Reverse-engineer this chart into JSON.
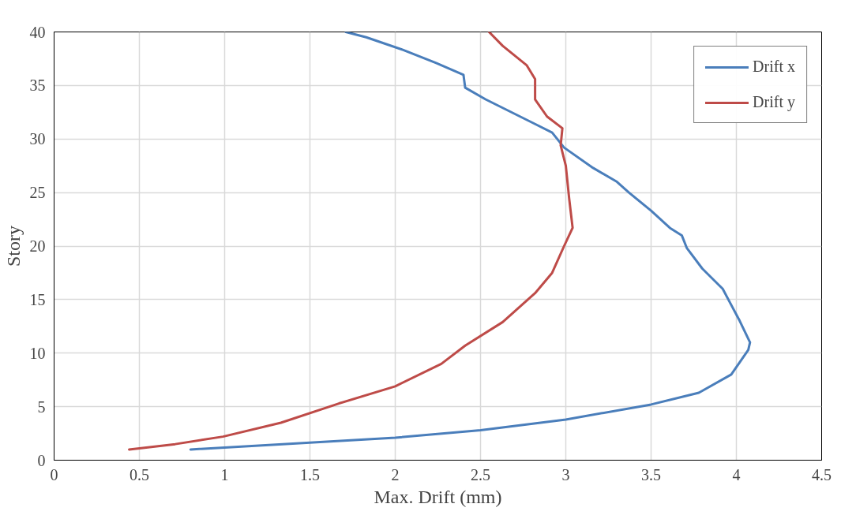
{
  "chart_data": {
    "type": "line",
    "xlabel": "Max. Drift (mm)",
    "ylabel": "Story",
    "xlim": [
      0,
      4.5
    ],
    "ylim": [
      0,
      40
    ],
    "xticks": [
      0,
      0.5,
      1,
      1.5,
      2,
      2.5,
      3,
      3.5,
      4,
      4.5
    ],
    "yticks": [
      0,
      5,
      10,
      15,
      20,
      25,
      30,
      35,
      40
    ],
    "grid": true,
    "legend": "top right",
    "marker": "none",
    "line_style": "solid",
    "series": [
      {
        "name": "Drift x",
        "color": "#4a7ebb",
        "x": [
          0.8,
          2.0,
          2.5,
          3.0,
          3.5,
          3.78,
          3.97,
          4.07,
          4.08,
          4.02,
          3.96,
          3.92,
          3.8,
          3.71,
          3.68,
          3.61,
          3.5,
          3.37,
          3.3,
          3.16,
          2.99,
          2.92,
          2.82,
          2.53,
          2.41,
          2.4,
          2.24,
          2.05,
          1.83,
          1.71
        ],
        "values": [
          1,
          2.1,
          2.8,
          3.8,
          5.2,
          6.3,
          8,
          10.3,
          11,
          13,
          14.8,
          16,
          17.9,
          19.8,
          21,
          21.7,
          23.3,
          25,
          26,
          27.3,
          29.2,
          30.6,
          31.4,
          33.7,
          34.8,
          36,
          37.1,
          38.3,
          39.5,
          40
        ]
      },
      {
        "name": "Drift y",
        "color": "#be4b48",
        "x": [
          0.44,
          0.71,
          0.99,
          1.33,
          1.67,
          2.0,
          2.27,
          2.41,
          2.63,
          2.82,
          2.92,
          2.99,
          3.04,
          3.02,
          3.0,
          2.97,
          2.98,
          2.89,
          2.82,
          2.82,
          2.77,
          2.63,
          2.55
        ],
        "values": [
          1,
          1.5,
          2.2,
          3.5,
          5.3,
          6.9,
          9,
          10.7,
          12.9,
          15.6,
          17.5,
          20,
          21.7,
          24.4,
          27.5,
          29.4,
          31,
          32.1,
          33.7,
          35.6,
          36.9,
          38.7,
          40
        ]
      }
    ]
  }
}
